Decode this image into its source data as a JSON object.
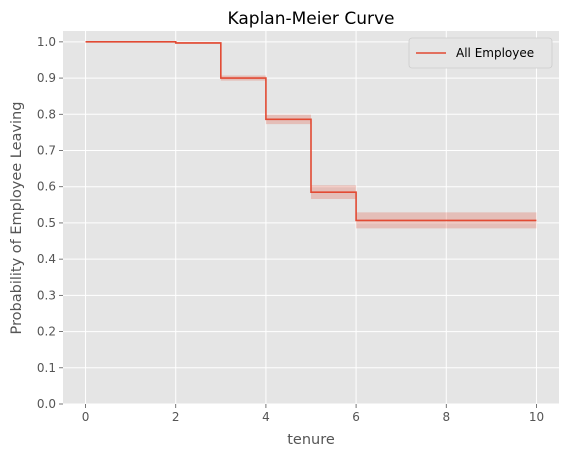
{
  "chart_data": {
    "type": "line",
    "title": "Kaplan-Meier Curve",
    "xlabel": "tenure",
    "ylabel": "Probability of Employee Leaving",
    "xlim": [
      -0.5,
      10.5
    ],
    "ylim": [
      0.0,
      1.03
    ],
    "x_ticks": [
      0,
      2,
      4,
      6,
      8,
      10
    ],
    "y_ticks": [
      0.0,
      0.1,
      0.2,
      0.3,
      0.4,
      0.5,
      0.6,
      0.7,
      0.8,
      0.9,
      1.0
    ],
    "x_tick_labels": [
      "0",
      "2",
      "4",
      "6",
      "8",
      "10"
    ],
    "y_tick_labels": [
      "0.0",
      "0.1",
      "0.2",
      "0.3",
      "0.4",
      "0.5",
      "0.6",
      "0.7",
      "0.8",
      "0.9",
      "1.0"
    ],
    "grid": true,
    "legend_position": "top-right",
    "series": [
      {
        "name": "All Employee",
        "color": "#e24a33",
        "step": true,
        "x": [
          0,
          2,
          3,
          4,
          5,
          6,
          10
        ],
        "y": [
          1.0,
          0.997,
          0.9,
          0.786,
          0.585,
          0.507,
          0.507
        ],
        "ci_lower": [
          1.0,
          0.994,
          0.893,
          0.773,
          0.566,
          0.485,
          0.485
        ],
        "ci_upper": [
          1.0,
          0.999,
          0.907,
          0.799,
          0.604,
          0.529,
          0.529
        ]
      }
    ]
  }
}
